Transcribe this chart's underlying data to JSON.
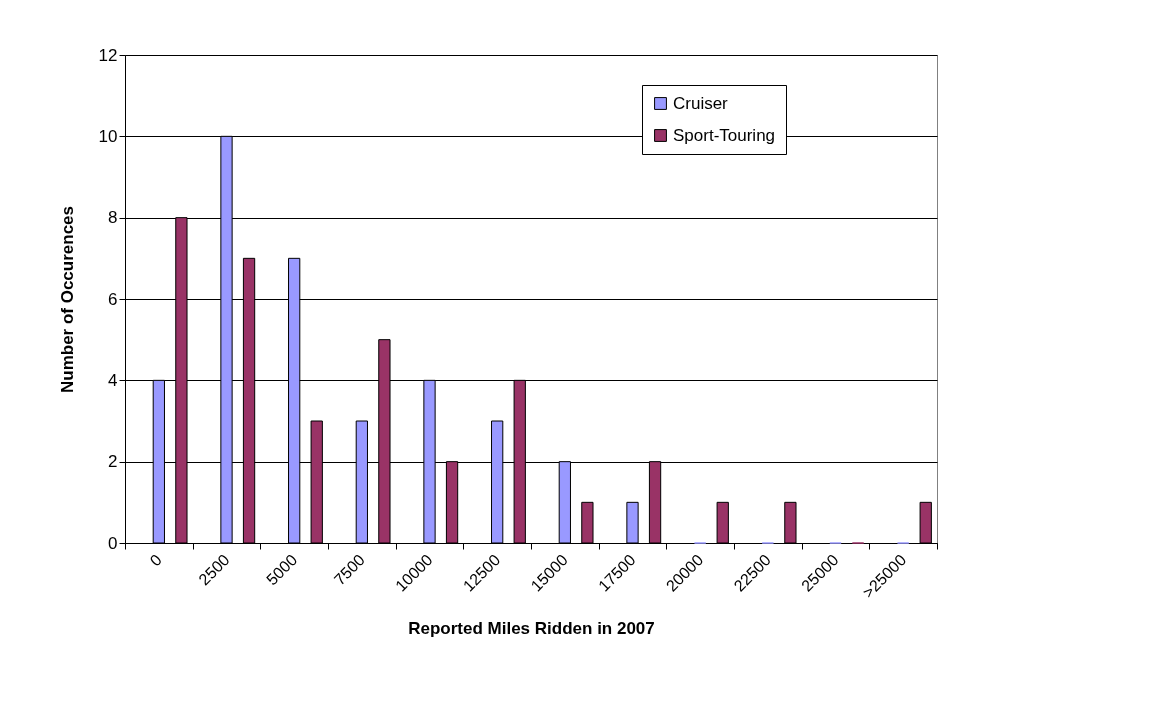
{
  "chart_data": {
    "type": "bar",
    "xlabel": "Reported Miles Ridden in 2007",
    "ylabel": "Number of Occurences",
    "categories": [
      "0",
      "2500",
      "5000",
      "7500",
      "10000",
      "12500",
      "15000",
      "17500",
      "20000",
      "22500",
      "25000",
      ">25000"
    ],
    "series": [
      {
        "name": "Cruiser",
        "color": "#9999ff",
        "values": [
          4,
          10,
          7,
          3,
          4,
          3,
          2,
          1,
          0,
          0,
          0,
          0
        ]
      },
      {
        "name": "Sport-Touring",
        "color": "#993366",
        "values": [
          8,
          7,
          3,
          5,
          2,
          4,
          1,
          2,
          1,
          1,
          0,
          1
        ]
      }
    ],
    "ylim": [
      0,
      12
    ],
    "yticks": [
      0,
      2,
      4,
      6,
      8,
      10,
      12
    ],
    "grid": "y",
    "legend": "top right"
  }
}
